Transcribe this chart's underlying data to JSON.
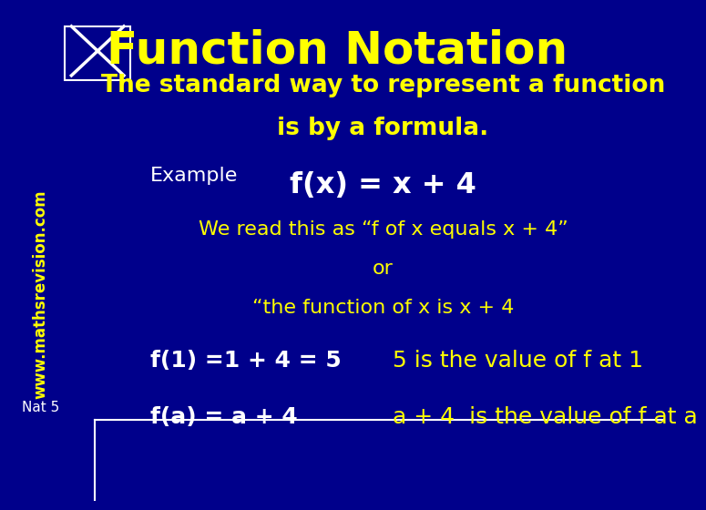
{
  "bg_color": "#00008B",
  "title_color": "#FFFF00",
  "title_text": "Function Notation",
  "title_fontsize": 36,
  "white_text_color": "#FFFFFF",
  "yellow_text_color": "#FFFF00",
  "nat5_text": "Nat 5",
  "nat5_fontsize": 11,
  "website_text": "www.mathsrevision.com",
  "website_fontsize": 12,
  "line1": "The standard way to represent a function",
  "line2": "is by a formula.",
  "example_label": "Example",
  "formula": "f(x) = x + 4",
  "line4": "We read this as “f of x equals x + 4”",
  "line5": "or",
  "line6": "“the function of x is x + 4",
  "line7a": "f(1) =1 + 4 = 5",
  "line7b": "5 is the value of f at 1",
  "line8a": "f(a) = a + 4",
  "line8b": "a + 4  is the value of f at a",
  "divider_color": "#FFFFFF",
  "top_bar_height": 0.165
}
